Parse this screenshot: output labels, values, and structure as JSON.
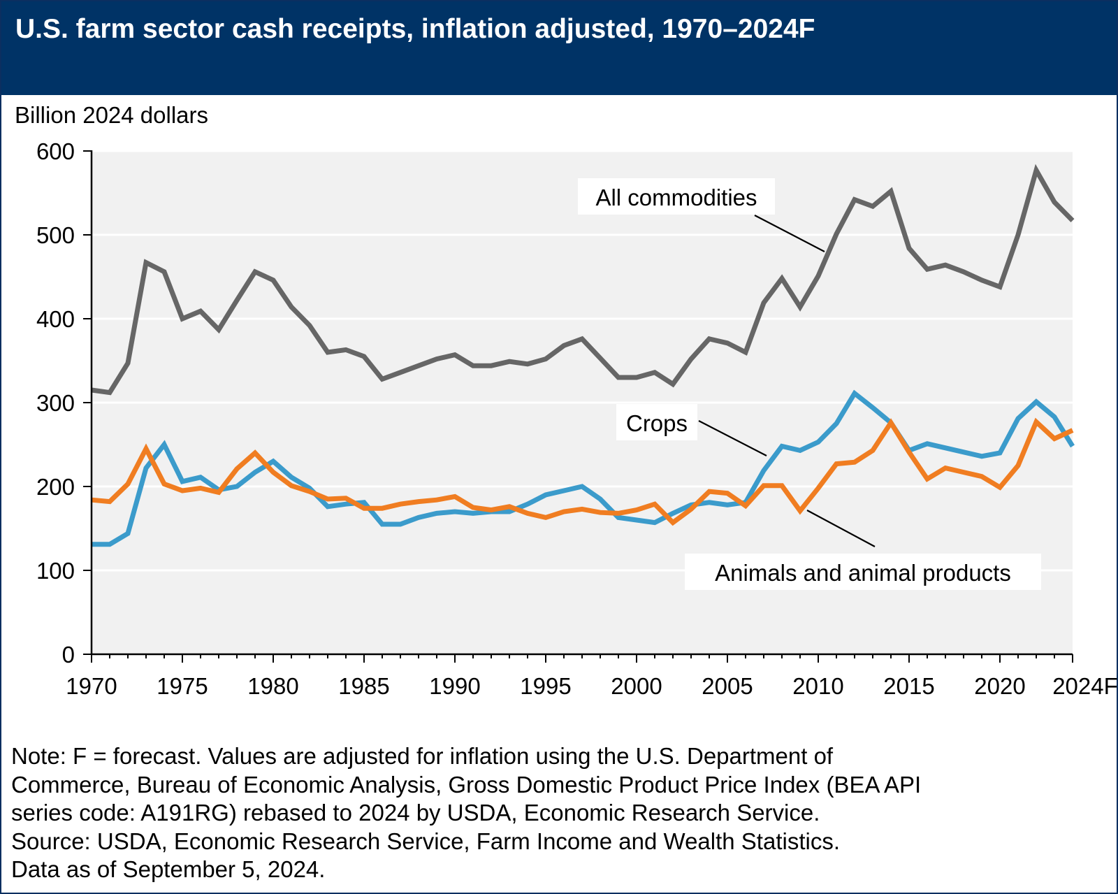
{
  "header": {
    "title": "U.S. farm sector cash receipts, inflation adjusted, 1970–2024F"
  },
  "colors": {
    "title_bar": "#003366",
    "plot_background": "#F1F1F1",
    "all_commodities": "#666666",
    "crops": "#3B9BCB",
    "animals": "#F07D21"
  },
  "chart_data": {
    "type": "line",
    "ylabel": "Billion 2024 dollars",
    "xlabel": "",
    "ylim": [
      0,
      600
    ],
    "xlim": [
      1970,
      2024
    ],
    "yticks": [
      "0",
      "100",
      "200",
      "300",
      "400",
      "500",
      "600"
    ],
    "xtick_values": [
      1970,
      1975,
      1980,
      1985,
      1990,
      1995,
      2000,
      2005,
      2010,
      2015,
      2020,
      2024
    ],
    "xtick_labels": [
      "1970",
      "1975",
      "1980",
      "1985",
      "1990",
      "1995",
      "2000",
      "2005",
      "2010",
      "2015",
      "2020",
      "2024F"
    ],
    "grid": "horizontal",
    "x": [
      1970,
      1971,
      1972,
      1973,
      1974,
      1975,
      1976,
      1977,
      1978,
      1979,
      1980,
      1981,
      1982,
      1983,
      1984,
      1985,
      1986,
      1987,
      1988,
      1989,
      1990,
      1991,
      1992,
      1993,
      1994,
      1995,
      1996,
      1997,
      1998,
      1999,
      2000,
      2001,
      2002,
      2003,
      2004,
      2005,
      2006,
      2007,
      2008,
      2009,
      2010,
      2011,
      2012,
      2013,
      2014,
      2015,
      2016,
      2017,
      2018,
      2019,
      2020,
      2021,
      2022,
      2023,
      2024
    ],
    "series": [
      {
        "name": "All commodities",
        "color": "#666666",
        "values": [
          315,
          312,
          347,
          467,
          456,
          400,
          409,
          387,
          422,
          456,
          446,
          414,
          392,
          360,
          363,
          355,
          328,
          336,
          344,
          352,
          357,
          344,
          344,
          349,
          346,
          352,
          368,
          376,
          353,
          330,
          330,
          336,
          322,
          352,
          376,
          371,
          360,
          419,
          448,
          414,
          451,
          501,
          542,
          534,
          552,
          484,
          459,
          464,
          456,
          446,
          438,
          500,
          577,
          539,
          517
        ]
      },
      {
        "name": "Crops",
        "color": "#3B9BCB",
        "values": [
          131,
          131,
          144,
          222,
          250,
          206,
          211,
          196,
          200,
          217,
          230,
          211,
          198,
          176,
          179,
          181,
          155,
          155,
          163,
          168,
          170,
          168,
          170,
          170,
          179,
          190,
          195,
          200,
          185,
          163,
          160,
          157,
          168,
          178,
          181,
          178,
          181,
          219,
          248,
          243,
          253,
          275,
          311,
          294,
          276,
          243,
          251,
          246,
          241,
          236,
          240,
          281,
          301,
          283,
          248
        ]
      },
      {
        "name": "Animals and animal products",
        "color": "#F07D21",
        "values": [
          184,
          182,
          203,
          245,
          203,
          195,
          198,
          193,
          221,
          240,
          217,
          201,
          194,
          185,
          186,
          174,
          174,
          179,
          182,
          184,
          188,
          175,
          172,
          176,
          168,
          163,
          170,
          173,
          169,
          168,
          172,
          179,
          157,
          173,
          194,
          192,
          177,
          201,
          201,
          171,
          198,
          227,
          229,
          243,
          276,
          241,
          209,
          222,
          217,
          212,
          199,
          225,
          277,
          257,
          267
        ]
      }
    ],
    "annotations": [
      "All commodities",
      "Crops",
      "Animals and animal products"
    ]
  },
  "notes": [
    "Note: F = forecast. Values are adjusted for inflation using the U.S. Department of",
    "Commerce, Bureau of Economic Analysis, Gross Domestic Product Price Index (BEA API",
    "series code: A191RG) rebased to 2024 by USDA, Economic Research Service.",
    "Source: USDA, Economic Research Service, Farm Income and Wealth Statistics.",
    "Data as of September 5, 2024."
  ]
}
